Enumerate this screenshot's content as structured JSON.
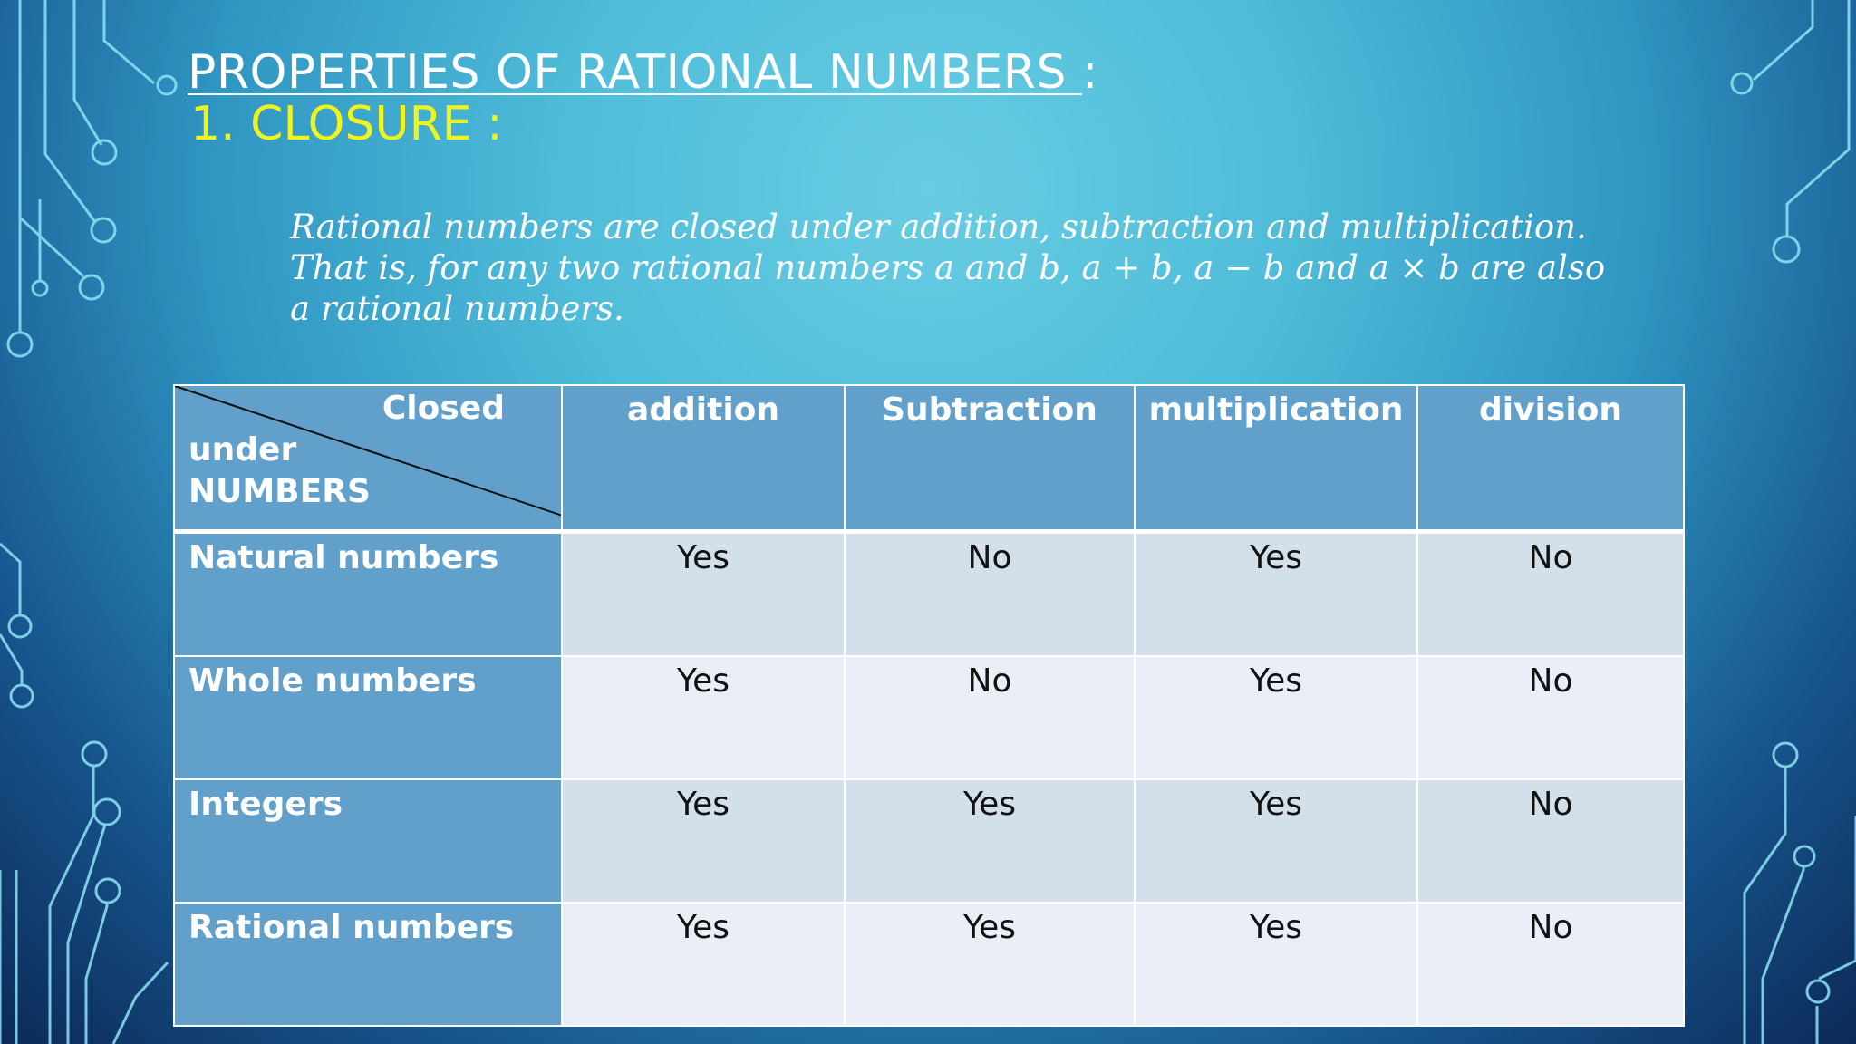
{
  "slide": {
    "title": "PROPERTIES OF RATIONAL NUMBERS ",
    "title_colon": ":",
    "subtitle": "1. CLOSURE :",
    "paragraph_lines": [
      "Rational numbers are closed under addition, subtraction and multiplication.",
      "That is, for any two rational numbers a and b, a + b, a − b and a × b are also",
      "a rational numbers."
    ]
  },
  "table": {
    "corner": {
      "top": "Closed",
      "middle": "under",
      "bottom": "NUMBERS"
    },
    "columns": [
      "addition",
      "Subtraction",
      "multiplication",
      "division"
    ],
    "rows": [
      {
        "label": "Natural numbers",
        "values": [
          "Yes",
          "No",
          "Yes",
          "No"
        ]
      },
      {
        "label": "Whole numbers",
        "values": [
          "Yes",
          "No",
          "Yes",
          "No"
        ]
      },
      {
        "label": "Integers",
        "values": [
          "Yes",
          "Yes",
          "Yes",
          "No"
        ]
      },
      {
        "label": "Rational numbers",
        "values": [
          "Yes",
          "Yes",
          "Yes",
          "No"
        ]
      }
    ]
  },
  "colors": {
    "title": "#ffffff",
    "subtitle": "#f0f31e",
    "header_cell": "#62a0cc",
    "row_odd": "#d3dfe9",
    "row_even": "#e9eef7",
    "circuit_lines": "#8fe3f5"
  }
}
